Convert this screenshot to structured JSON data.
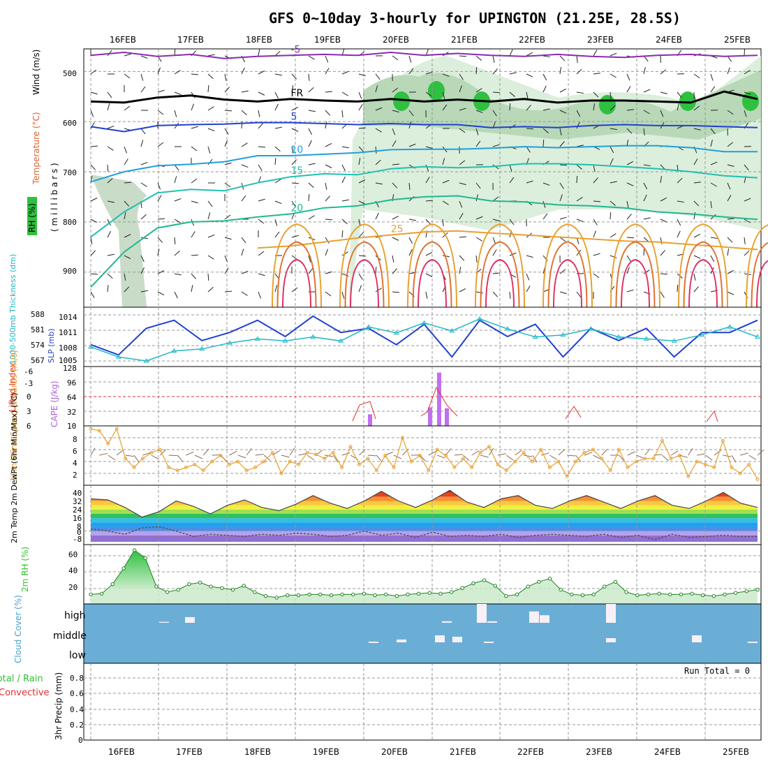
{
  "title": "GFS 0~10day 3-hourly for UPINGTON (21.25E, 28.5S)",
  "dates": [
    "16FEB",
    "17FEB",
    "18FEB",
    "19FEB",
    "20FEB",
    "21FEB",
    "22FEB",
    "23FEB",
    "24FEB",
    "25FEB"
  ],
  "colors": {
    "purple": "#8a2bb0",
    "blue": "#2040d0",
    "cyan": "#20b8c8",
    "orange": "#e8a030",
    "green": "#30c030",
    "red": "#e03030",
    "cloud": "#6aaed6",
    "rhfill": "#c8e8c8"
  },
  "chart_data": [
    {
      "type": "line",
      "name": "upper-air cross section",
      "ylabel_parts": [
        "Wind (m/s)",
        "Temperature (°C)",
        "RH (%)"
      ],
      "ylabel2": "( m i l l i b a r s )",
      "yticks": [
        "500",
        "600",
        "700",
        "800",
        "900"
      ],
      "ylim": [
        970,
        455
      ],
      "series": [
        {
          "name": "-5°C isotherm",
          "level": [
            468,
            462,
            470,
            466,
            474,
            470,
            468,
            466,
            468,
            462,
            468,
            464,
            468,
            470,
            466,
            470,
            472,
            468,
            466,
            470,
            468
          ],
          "label": "-5"
        },
        {
          "name": "0°C freezing level",
          "level": [
            560,
            562,
            552,
            548,
            556,
            560,
            555,
            558,
            560,
            555,
            560,
            556,
            560,
            555,
            562,
            558,
            558,
            560,
            562,
            540,
            555
          ],
          "label": "FR"
        },
        {
          "name": "5°C isotherm",
          "level": [
            610,
            620,
            608,
            606,
            605,
            602,
            602,
            604,
            606,
            604,
            606,
            606,
            612,
            610,
            612,
            608,
            606,
            608,
            608,
            610,
            612
          ],
          "label": "5"
        },
        {
          "name": "10°C isotherm",
          "level": [
            720,
            700,
            688,
            685,
            680,
            668,
            668,
            665,
            662,
            656,
            655,
            655,
            653,
            650,
            652,
            650,
            648,
            648,
            652,
            660,
            660
          ],
          "label": "10"
        },
        {
          "name": "15°C isotherm",
          "level": [
            830,
            780,
            742,
            735,
            738,
            722,
            710,
            704,
            706,
            694,
            690,
            692,
            690,
            684,
            684,
            686,
            690,
            694,
            700,
            708,
            712
          ],
          "label": "15"
        },
        {
          "name": "20°C isotherm",
          "level": [
            930,
            860,
            812,
            800,
            798,
            790,
            784,
            772,
            768,
            756,
            750,
            748,
            758,
            760,
            766,
            768,
            772,
            780,
            784,
            790,
            795
          ],
          "label": "20"
        },
        {
          "name": "25°C isotherm",
          "level": [
            null,
            null,
            null,
            null,
            null,
            852,
            848,
            840,
            832,
            826,
            820,
            818,
            822,
            826,
            830,
            834,
            838,
            840,
            845,
            850,
            855
          ],
          "label": "25"
        }
      ]
    },
    {
      "type": "line",
      "name": "thickness and SLP",
      "ylabel_thickness": "1000-500mb Thickness (dm)",
      "ylabel_slp": "SLP (mb)",
      "yticks_left": [
        "588",
        "581",
        "574",
        "567"
      ],
      "yticks_right": [
        "1014",
        "1011",
        "1008",
        "1005"
      ],
      "series": [
        {
          "name": "SLP (mb)",
          "values": [
            1008,
            1005.5,
            1012,
            1014,
            1009,
            1011,
            1014,
            1010,
            1015,
            1011,
            1012,
            1008,
            1013,
            1005,
            1014,
            1010,
            1013,
            1005,
            1012,
            1009,
            1012,
            1005,
            1011,
            1011,
            1014
          ]
        },
        {
          "name": "1000-500mb Thickness (dm)",
          "values": [
            573,
            568,
            566,
            571,
            572,
            575,
            577,
            576,
            578,
            576,
            583,
            580,
            585,
            581,
            587,
            582,
            578,
            579,
            582,
            578,
            577,
            576,
            579,
            583,
            578
          ]
        }
      ]
    },
    {
      "type": "bar",
      "name": "CAPE and Lifted Index",
      "ylabel_li": "Lifted Index",
      "ylabel_cape": "CAPE (J/kg)",
      "yticks_li": [
        "-6",
        "-3",
        "0",
        "3",
        "6"
      ],
      "yticks_cape": [
        "128",
        "96",
        "64",
        "32",
        "10"
      ],
      "series": [
        {
          "name": "CAPE (J/kg)",
          "categories": [
            "19FEB 12Z",
            "20FEB 12Z",
            "20FEB 15Z",
            "20FEB 18Z"
          ],
          "values": [
            25,
            40,
            115,
            38
          ]
        },
        {
          "name": "Lifted Index",
          "categories": [
            "19FEB 09Z",
            "19FEB 15Z",
            "20FEB 09Z",
            "20FEB 15Z",
            "21FEB 12Z",
            "22FEB 15Z",
            "24FEB 15Z"
          ],
          "values": [
            5,
            1,
            4,
            -2,
            4,
            2,
            3
          ]
        }
      ]
    },
    {
      "type": "line",
      "name": "10m wind",
      "ylabel": "10m Wind Speed & Barbs (m/s)",
      "yticks": [
        "8",
        "6",
        "4",
        "2"
      ],
      "ylim": [
        0,
        10
      ],
      "series": [
        {
          "name": "10m Wind Speed",
          "values": [
            9.5,
            9.2,
            7,
            9.5,
            4.5,
            3,
            4.5,
            5.5,
            6,
            3,
            2.5,
            3,
            3.5,
            2.5,
            4,
            5,
            3.5,
            4,
            2.5,
            3,
            4,
            5.5,
            2,
            4,
            3.5,
            5.5,
            5.2,
            4.5,
            5.5,
            3,
            6.5,
            3.5,
            4.5,
            2.5,
            5,
            3,
            8,
            4,
            5,
            2.5,
            6,
            5,
            3,
            4.5,
            3,
            5.5,
            6.5,
            3.5,
            2.5,
            4,
            5.5,
            4,
            6,
            3,
            4,
            1.5,
            4,
            5.5,
            6,
            4.5,
            2.5,
            6,
            3,
            4,
            4.5,
            4.5,
            7.5,
            4.5,
            5,
            1.5,
            4,
            3.5,
            3,
            7.5,
            3,
            2,
            3.5,
            1
          ]
        }
      ]
    },
    {
      "type": "area",
      "name": "2m temperature and dewpoint",
      "ylabel": "2m Temp 2m DewPt (6hr Min/Max) (°C)",
      "yticks": [
        "40",
        "32",
        "24",
        "16",
        "8",
        "0",
        "-8"
      ],
      "series": [
        {
          "name": "2m Temp",
          "values": [
            30,
            29,
            22,
            13,
            18,
            28,
            23,
            16,
            24,
            29,
            22,
            19,
            25,
            33,
            26,
            21,
            28,
            37,
            28,
            22,
            29,
            38,
            27,
            22,
            30,
            33,
            24,
            21,
            28,
            33,
            27,
            21,
            28,
            33,
            24,
            21,
            28,
            36,
            26,
            22
          ]
        },
        {
          "name": "2m DewPt",
          "values": [
            2,
            0,
            -3,
            3,
            4,
            0,
            -5,
            -3,
            -4,
            -5,
            -3,
            -4,
            -2,
            -3,
            -5,
            -4,
            0,
            -4,
            -2,
            -6,
            -1,
            -5,
            -4,
            -5,
            -3,
            -6,
            -4,
            -3,
            -4,
            -5,
            -3,
            -6,
            -4,
            -8,
            -3,
            -6,
            -5,
            -4,
            -5,
            -5
          ]
        }
      ]
    },
    {
      "type": "area",
      "name": "2m RH",
      "ylabel": "2m RH (%)",
      "yticks": [
        "60",
        "40",
        "20"
      ],
      "ylim": [
        0,
        75
      ],
      "series": [
        {
          "name": "2m RH",
          "values": [
            12,
            13,
            25,
            45,
            68,
            58,
            22,
            15,
            18,
            25,
            27,
            22,
            20,
            18,
            23,
            15,
            10,
            8,
            11,
            11,
            12,
            12,
            11,
            12,
            12,
            13,
            11,
            12,
            10,
            12,
            13,
            14,
            13,
            15,
            20,
            26,
            30,
            23,
            10,
            12,
            22,
            28,
            32,
            18,
            12,
            11,
            12,
            22,
            28,
            15,
            11,
            12,
            13,
            12,
            12,
            13,
            11,
            10,
            12,
            14,
            16,
            18
          ]
        }
      ]
    },
    {
      "type": "heatmap",
      "name": "Cloud Cover",
      "ylabel": "Cloud Cover (%)",
      "rows": [
        "high",
        "middle",
        "low"
      ],
      "series": [
        {
          "name": "high",
          "categories": [
            "16FEB 18Z",
            "17FEB 00Z",
            "21FEB 00Z",
            "21FEB 06Z",
            "21FEB 12Z",
            "22FEB 00Z",
            "22FEB 06Z",
            "23FEB 00Z"
          ],
          "values": [
            5,
            30,
            8,
            100,
            8,
            60,
            40,
            100
          ]
        },
        {
          "name": "middle",
          "categories": [
            "19FEB 18Z",
            "20FEB 00Z",
            "20FEB 12Z",
            "20FEB 18Z",
            "21FEB 06Z",
            "23FEB 00Z",
            "24FEB 06Z",
            "25FEB 00Z"
          ],
          "values": [
            5,
            20,
            50,
            40,
            5,
            30,
            50,
            5
          ]
        }
      ]
    },
    {
      "type": "bar",
      "name": "3hr Precip",
      "ylabel": "3hr Precip (mm)",
      "legend": [
        "Total / Rain",
        "Convective"
      ],
      "annotation": "Run Total = 0",
      "yticks": [
        "0.8",
        "0.6",
        "0.4",
        "0.2",
        "0"
      ],
      "ylim": [
        0,
        0.95
      ],
      "categories": [
        "16FEB",
        "17FEB",
        "18FEB",
        "19FEB",
        "20FEB",
        "21FEB",
        "22FEB",
        "23FEB",
        "24FEB",
        "25FEB"
      ],
      "values": [
        0,
        0,
        0,
        0,
        0,
        0,
        0,
        0,
        0,
        0
      ]
    }
  ]
}
